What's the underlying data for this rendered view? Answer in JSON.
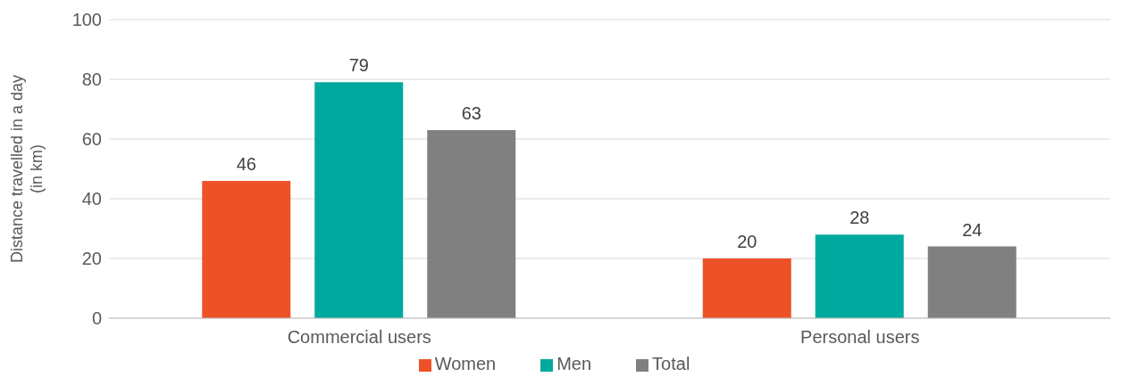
{
  "chart_data": {
    "type": "bar",
    "ylabel": "Distance travelled in a day (in km)",
    "categories": [
      "Commercial users",
      "Personal users"
    ],
    "series": [
      {
        "name": "Women",
        "color": "#ee5128",
        "values": [
          46,
          20
        ]
      },
      {
        "name": "Men",
        "color": "#00a99d",
        "values": [
          79,
          28
        ]
      },
      {
        "name": "Total",
        "color": "#808080",
        "values": [
          63,
          24
        ]
      }
    ],
    "ylim": [
      0,
      100
    ],
    "yticks": [
      0,
      20,
      40,
      60,
      80,
      100
    ],
    "grid": "y",
    "legend": "bottom",
    "data_labels": true
  }
}
